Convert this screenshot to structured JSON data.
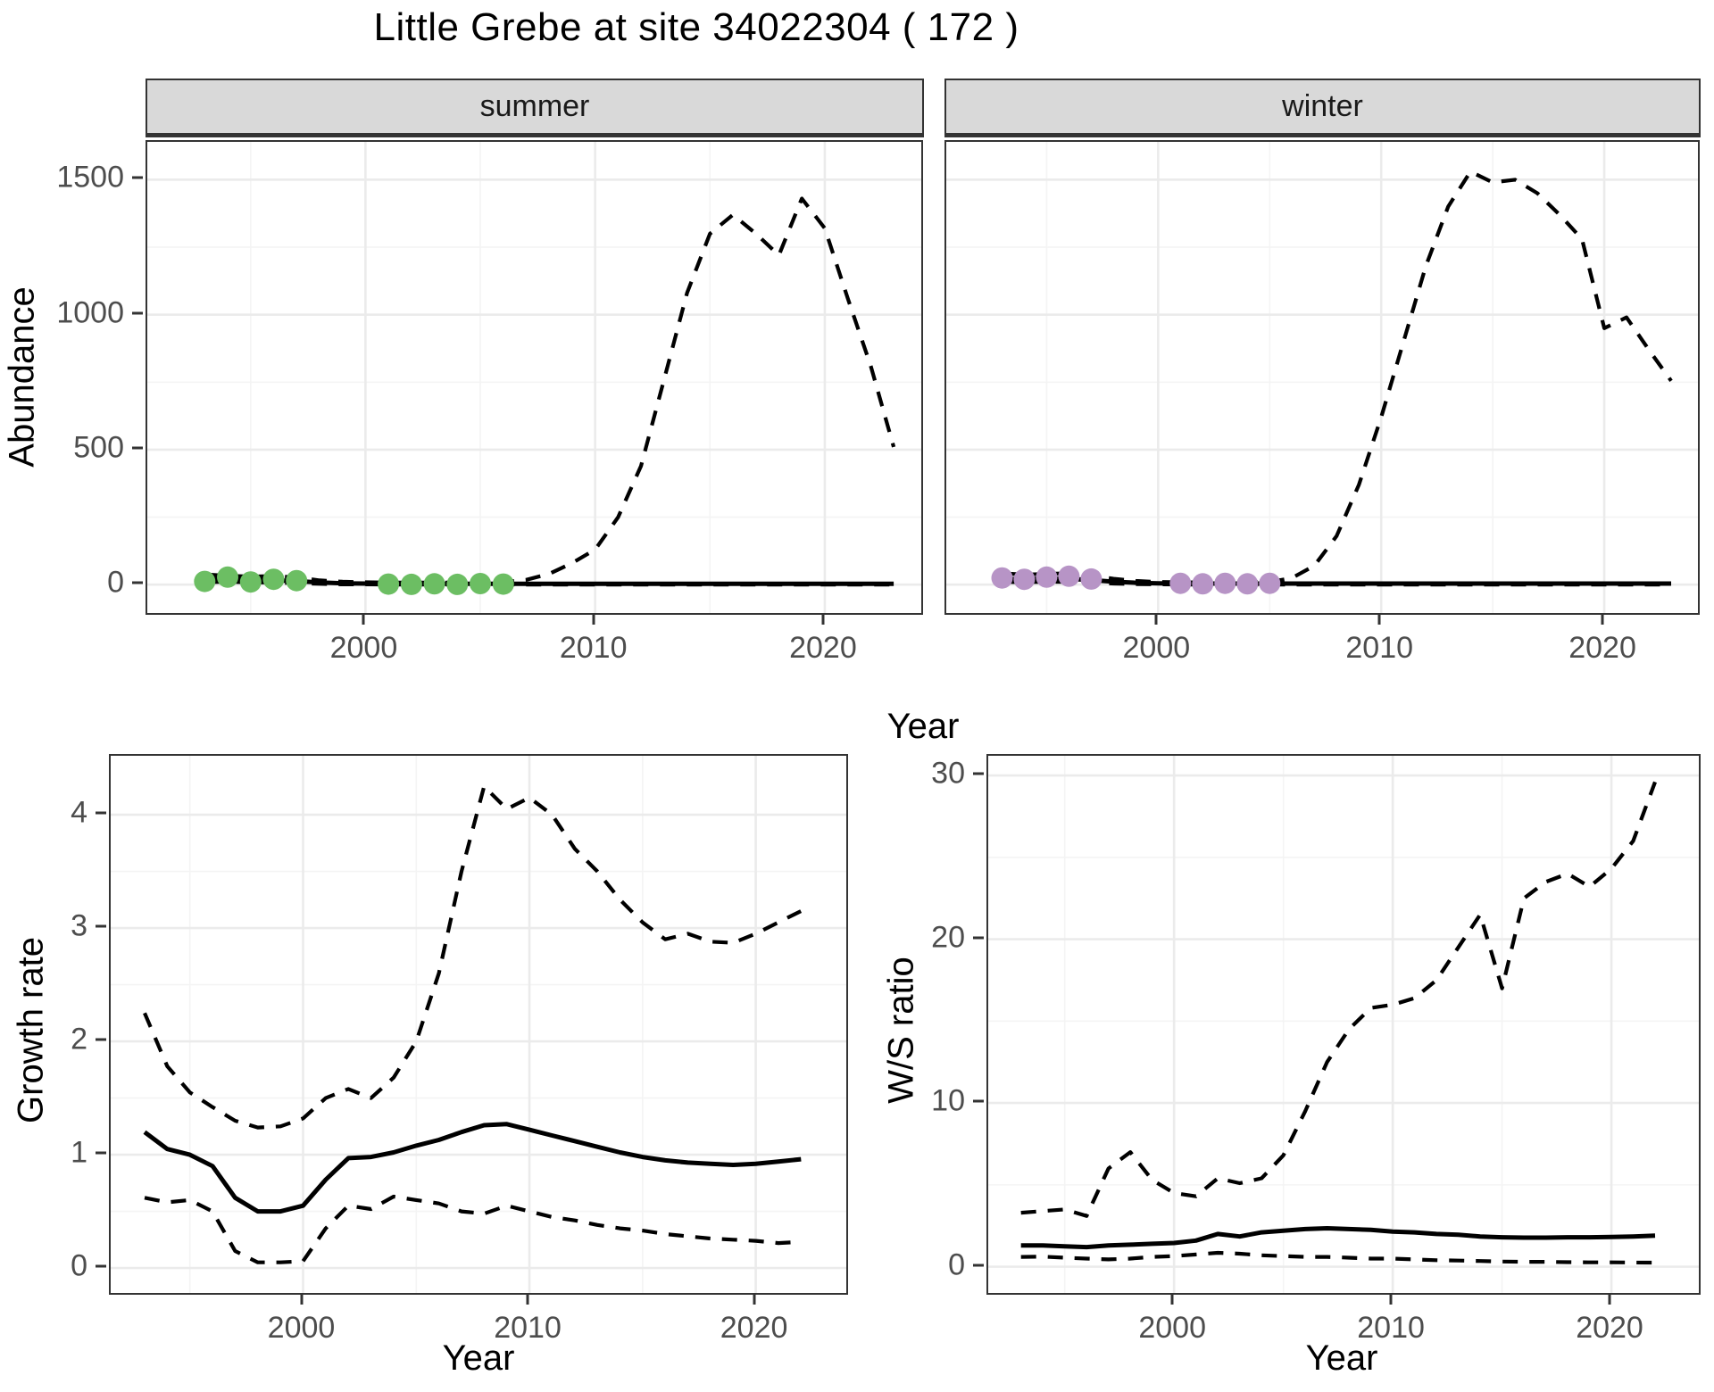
{
  "title": "Little Grebe at site 34022304 ( 172 )",
  "labels": {
    "abundance": "Abundance",
    "growth": "Growth rate",
    "ws": "W/S ratio",
    "year_top": "Year",
    "year_bottom_left": "Year",
    "year_bottom_right": "Year"
  },
  "facets": [
    "summer",
    "winter"
  ],
  "colors": {
    "summer_points": "#6CBE63",
    "winter_points": "#B794C6",
    "line": "#000000",
    "grid_major": "#ebebeb",
    "grid_minor": "#f4f4f4",
    "panel_border": "#333333",
    "strip_fill": "#d9d9d9",
    "tick_text": "#4d4d4d"
  },
  "chart_data": [
    {
      "type": "line",
      "facet": "summer",
      "ylabel": "Abundance",
      "xlabel": "Year",
      "xlim": [
        1990.5,
        2024.2
      ],
      "ylim": [
        -105,
        1640
      ],
      "xticks": [
        2000,
        2010,
        2020
      ],
      "yticks": [
        0,
        500,
        1000,
        1500
      ],
      "xminor": [
        1995,
        2005,
        2015
      ],
      "yminor": [
        250,
        750,
        1250
      ],
      "ytick_labels": true,
      "legend": "none",
      "grid": true,
      "x": [
        1993,
        1994,
        1995,
        1996,
        1997,
        1998,
        1999,
        2000,
        2001,
        2002,
        2003,
        2004,
        2005,
        2006,
        2007,
        2008,
        2009,
        2010,
        2011,
        2012,
        2013,
        2014,
        2015,
        2016,
        2017,
        2018,
        2019,
        2020,
        2021,
        2022,
        2023
      ],
      "series": [
        {
          "name": "upper-ci",
          "style": "dashed",
          "values": [
            38,
            33,
            30,
            32,
            27,
            16,
            11,
            9,
            8,
            8,
            8,
            8,
            9,
            10,
            18,
            40,
            80,
            130,
            250,
            440,
            760,
            1080,
            1300,
            1370,
            1300,
            1220,
            1430,
            1320,
            1060,
            810,
            510
          ]
        },
        {
          "name": "lower-ci",
          "style": "dashed",
          "values": [
            9,
            11,
            8,
            8,
            6,
            3,
            1,
            1,
            0.5,
            0.5,
            0.5,
            0.5,
            0.5,
            0.5,
            0.5,
            0.5,
            0.5,
            0.5,
            0.5,
            0.5,
            0.5,
            0.5,
            0.5,
            0.5,
            0.5,
            0.5,
            0.5,
            0.5,
            0.5,
            0.5,
            0.5
          ]
        },
        {
          "name": "estimate",
          "style": "solid",
          "values": [
            20,
            24,
            17,
            16,
            13,
            8,
            5,
            4,
            3,
            3,
            3,
            3,
            3,
            3,
            3,
            3,
            3,
            3,
            3,
            3,
            3,
            3,
            3,
            3,
            3,
            3,
            3,
            3,
            3,
            3,
            3
          ]
        }
      ],
      "points": {
        "name": "observed-summer-counts",
        "color": "#6CBE63",
        "x": [
          1993,
          1994,
          1995,
          1996,
          1997,
          2001,
          2002,
          2003,
          2004,
          2005,
          2006
        ],
        "y": [
          12,
          28,
          10,
          20,
          15,
          2,
          1,
          3,
          1,
          4,
          2
        ]
      }
    },
    {
      "type": "line",
      "facet": "winter",
      "ylabel": "Abundance",
      "xlabel": "Year",
      "xlim": [
        1990.5,
        2024.2
      ],
      "ylim": [
        -105,
        1640
      ],
      "xticks": [
        2000,
        2010,
        2020
      ],
      "yticks": [
        0,
        500,
        1000,
        1500
      ],
      "xminor": [
        1995,
        2005,
        2015
      ],
      "yminor": [
        250,
        750,
        1250
      ],
      "ytick_labels": false,
      "legend": "none",
      "grid": true,
      "x": [
        1993,
        1994,
        1995,
        1996,
        1997,
        1998,
        1999,
        2000,
        2001,
        2002,
        2003,
        2004,
        2005,
        2006,
        2007,
        2008,
        2009,
        2010,
        2011,
        2012,
        2013,
        2014,
        2015,
        2016,
        2017,
        2018,
        2019,
        2020,
        2021,
        2022,
        2023
      ],
      "series": [
        {
          "name": "upper-ci",
          "style": "dashed",
          "values": [
            42,
            37,
            40,
            42,
            33,
            22,
            14,
            10,
            9,
            8,
            8,
            9,
            10,
            25,
            70,
            180,
            370,
            620,
            900,
            1180,
            1400,
            1530,
            1490,
            1500,
            1450,
            1370,
            1280,
            950,
            990,
            870,
            755
          ]
        },
        {
          "name": "lower-ci",
          "style": "dashed",
          "values": [
            10,
            9,
            11,
            10,
            7,
            4,
            2,
            1,
            0.5,
            0.5,
            0.5,
            0.5,
            0.5,
            0.5,
            0.5,
            0.5,
            0.5,
            0.5,
            0.5,
            0.5,
            0.5,
            0.5,
            0.5,
            0.5,
            0.5,
            0.5,
            0.5,
            0.5,
            0.5,
            0.5,
            0.5
          ]
        },
        {
          "name": "estimate",
          "style": "solid",
          "values": [
            22,
            20,
            24,
            22,
            17,
            11,
            7,
            5,
            4,
            4,
            4,
            4,
            4,
            4,
            4,
            4,
            4,
            4,
            4,
            4,
            4,
            4,
            4,
            4,
            4,
            4,
            4,
            4,
            4,
            4,
            4
          ]
        }
      ],
      "points": {
        "name": "observed-winter-counts",
        "color": "#B794C6",
        "x": [
          1993,
          1994,
          1995,
          1996,
          1997,
          2001,
          2002,
          2003,
          2004,
          2005
        ],
        "y": [
          25,
          20,
          28,
          31,
          21,
          5,
          3,
          5,
          3,
          5
        ]
      }
    },
    {
      "type": "line",
      "facet": null,
      "ylabel": "Growth rate",
      "xlabel": "Year",
      "xlim": [
        1991.5,
        2024
      ],
      "ylim": [
        -0.22,
        4.52
      ],
      "xticks": [
        2000,
        2010,
        2020
      ],
      "yticks": [
        0,
        1,
        2,
        3,
        4
      ],
      "xminor": [
        1995,
        2005,
        2015
      ],
      "yminor": [
        0.5,
        1.5,
        2.5,
        3.5
      ],
      "ytick_labels": true,
      "legend": "none",
      "grid": true,
      "x": [
        1993,
        1994,
        1995,
        1996,
        1997,
        1998,
        1999,
        2000,
        2001,
        2002,
        2003,
        2004,
        2005,
        2006,
        2007,
        2008,
        2009,
        2010,
        2011,
        2012,
        2013,
        2014,
        2015,
        2016,
        2017,
        2018,
        2019,
        2020,
        2021,
        2022
      ],
      "series": [
        {
          "name": "upper-ci",
          "style": "dashed",
          "values": [
            2.25,
            1.78,
            1.55,
            1.42,
            1.3,
            1.24,
            1.25,
            1.32,
            1.5,
            1.58,
            1.5,
            1.68,
            2.0,
            2.6,
            3.5,
            4.25,
            4.05,
            4.15,
            4.0,
            3.7,
            3.5,
            3.25,
            3.05,
            2.9,
            2.95,
            2.88,
            2.87,
            2.95,
            3.05,
            3.15
          ]
        },
        {
          "name": "lower-ci",
          "style": "dashed",
          "values": [
            0.62,
            0.58,
            0.6,
            0.5,
            0.15,
            0.05,
            0.05,
            0.06,
            0.35,
            0.55,
            0.52,
            0.63,
            0.6,
            0.57,
            0.5,
            0.48,
            0.55,
            0.5,
            0.45,
            0.42,
            0.38,
            0.35,
            0.33,
            0.3,
            0.28,
            0.26,
            0.25,
            0.24,
            0.22,
            0.23
          ]
        },
        {
          "name": "estimate",
          "style": "solid",
          "values": [
            1.2,
            1.05,
            1.0,
            0.9,
            0.62,
            0.5,
            0.5,
            0.55,
            0.78,
            0.97,
            0.98,
            1.02,
            1.08,
            1.13,
            1.2,
            1.26,
            1.27,
            1.22,
            1.17,
            1.12,
            1.07,
            1.02,
            0.98,
            0.95,
            0.93,
            0.92,
            0.91,
            0.92,
            0.94,
            0.96
          ]
        }
      ],
      "points": null
    },
    {
      "type": "line",
      "facet": null,
      "ylabel": "W/S ratio",
      "xlabel": "Year",
      "xlim": [
        1991.5,
        2024
      ],
      "ylim": [
        -1.6,
        31.2
      ],
      "xticks": [
        2000,
        2010,
        2020
      ],
      "yticks": [
        0,
        10,
        20,
        30
      ],
      "xminor": [
        1995,
        2005,
        2015
      ],
      "yminor": [
        5,
        15,
        25
      ],
      "ytick_labels": true,
      "legend": "none",
      "grid": true,
      "x": [
        1993,
        1994,
        1995,
        1996,
        1997,
        1998,
        1999,
        2000,
        2001,
        2002,
        2003,
        2004,
        2005,
        2006,
        2007,
        2008,
        2009,
        2010,
        2011,
        2012,
        2013,
        2014,
        2015,
        2016,
        2017,
        2018,
        2019,
        2020,
        2021,
        2022
      ],
      "series": [
        {
          "name": "upper-ci",
          "style": "dashed",
          "values": [
            3.3,
            3.4,
            3.5,
            3.1,
            6.0,
            7.0,
            5.3,
            4.5,
            4.3,
            5.4,
            5.1,
            5.4,
            6.8,
            9.5,
            12.5,
            14.5,
            15.8,
            16.0,
            16.4,
            17.5,
            19.5,
            21.5,
            17.0,
            22.5,
            23.5,
            24.0,
            23.2,
            24.3,
            26.0,
            29.6
          ]
        },
        {
          "name": "lower-ci",
          "style": "dashed",
          "values": [
            0.6,
            0.62,
            0.55,
            0.5,
            0.45,
            0.5,
            0.6,
            0.65,
            0.75,
            0.85,
            0.8,
            0.7,
            0.65,
            0.6,
            0.6,
            0.55,
            0.5,
            0.5,
            0.45,
            0.4,
            0.38,
            0.35,
            0.32,
            0.3,
            0.3,
            0.28,
            0.27,
            0.27,
            0.26,
            0.25
          ]
        },
        {
          "name": "estimate",
          "style": "solid",
          "values": [
            1.3,
            1.3,
            1.25,
            1.2,
            1.3,
            1.35,
            1.4,
            1.45,
            1.6,
            2.0,
            1.85,
            2.1,
            2.2,
            2.3,
            2.35,
            2.3,
            2.25,
            2.15,
            2.1,
            2.0,
            1.95,
            1.85,
            1.8,
            1.78,
            1.78,
            1.8,
            1.8,
            1.82,
            1.85,
            1.9
          ]
        }
      ],
      "points": null
    }
  ]
}
